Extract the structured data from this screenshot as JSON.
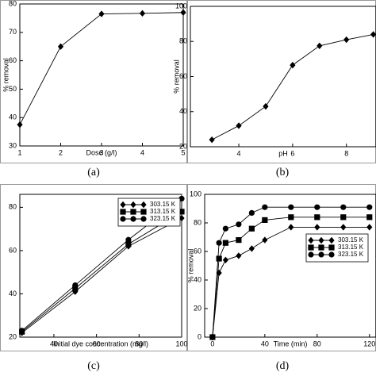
{
  "chart_data": [
    {
      "type": "line",
      "caption": "(a)",
      "xlabel": "Dose (g/l)",
      "ylabel": "% removal",
      "x": [
        1,
        2,
        3,
        4,
        5
      ],
      "values": [
        37.5,
        65,
        76.5,
        76.7,
        77
      ],
      "color": "#000000",
      "marker": "diamond",
      "xlim": [
        1,
        5
      ],
      "ylim": [
        30,
        80
      ],
      "xticks": [
        1,
        2,
        3,
        4,
        5
      ],
      "yticks": [
        30,
        40,
        50,
        60,
        70,
        80
      ]
    },
    {
      "type": "line",
      "caption": "(b)",
      "xlabel": "pH",
      "ylabel": "% removal",
      "x": [
        3,
        4,
        5,
        6,
        7,
        8,
        9
      ],
      "values": [
        24,
        32,
        43,
        66.5,
        77.5,
        81,
        84
      ],
      "color": "#000000",
      "marker": "diamond",
      "xlim": [
        2.2,
        9.1
      ],
      "ylim": [
        20,
        100
      ],
      "xticks": [
        4,
        6,
        8
      ],
      "yticks": [
        20,
        40,
        60,
        80,
        100
      ]
    },
    {
      "type": "line",
      "caption": "(c)",
      "xlabel": "Initial dye concentration (mg/l)",
      "x": [
        25,
        50,
        75,
        100
      ],
      "series": [
        {
          "name": "303.15 K",
          "color": "#000000",
          "marker": "diamond",
          "values": [
            22,
            41,
            62,
            75
          ]
        },
        {
          "name": "313.15 K",
          "color": "#000000",
          "marker": "square",
          "values": [
            22.5,
            42.5,
            63,
            78
          ]
        },
        {
          "name": "323.15 K",
          "color": "#000000",
          "marker": "circle",
          "values": [
            23,
            44,
            65,
            84
          ]
        }
      ],
      "xlim": [
        24,
        100
      ],
      "ylim": [
        20,
        86
      ],
      "xticks": [
        40,
        60,
        80,
        100
      ],
      "yticks": [
        20,
        40,
        60,
        80
      ],
      "legend": "upper-left"
    },
    {
      "type": "line",
      "caption": "(d)",
      "xlabel": "Time (min)",
      "ylabel": "% removal",
      "x": [
        0,
        5,
        10,
        20,
        30,
        40,
        60,
        80,
        100,
        120
      ],
      "series": [
        {
          "name": "303.15 K",
          "color": "#000000",
          "marker": "diamond",
          "values": [
            0,
            45,
            54,
            57,
            62,
            68,
            77,
            77,
            77,
            77
          ]
        },
        {
          "name": "313.15 K",
          "color": "#000000",
          "marker": "square",
          "values": [
            0,
            55,
            66,
            68,
            76,
            82,
            84,
            84,
            84,
            84
          ]
        },
        {
          "name": "323.15 K",
          "color": "#000000",
          "marker": "circle",
          "values": [
            0,
            66,
            76,
            79,
            87,
            91,
            91,
            91,
            91,
            91
          ]
        }
      ],
      "xlim": [
        -6,
        125
      ],
      "ylim": [
        0,
        100
      ],
      "xticks": [
        0,
        40,
        80,
        120
      ],
      "yticks": [
        0,
        20,
        40,
        60,
        80,
        100
      ],
      "legend": "center-right"
    }
  ]
}
